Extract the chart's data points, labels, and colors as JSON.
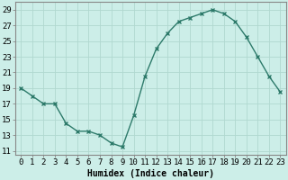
{
  "x_data": [
    0,
    1,
    2,
    3,
    4,
    5,
    6,
    7,
    8,
    9,
    10,
    11,
    12,
    13,
    14,
    15,
    16,
    17,
    18,
    19,
    20,
    21,
    22,
    23
  ],
  "y_data": [
    19,
    18,
    17,
    17,
    14.5,
    13.5,
    13.5,
    13,
    12,
    11.5,
    15.5,
    20.5,
    24,
    26,
    27.5,
    28,
    28.5,
    29,
    28.5,
    27.5,
    25.5,
    23,
    20.5,
    18.5
  ],
  "line_color": "#2d7a6a",
  "marker": "x",
  "background_color": "#cceee8",
  "grid_color": "#b0d8d0",
  "xlabel": "Humidex (Indice chaleur)",
  "xlim": [
    -0.5,
    23.5
  ],
  "ylim": [
    10.5,
    30
  ],
  "yticks": [
    11,
    13,
    15,
    17,
    19,
    21,
    23,
    25,
    27,
    29
  ],
  "xticks": [
    0,
    1,
    2,
    3,
    4,
    5,
    6,
    7,
    8,
    9,
    10,
    11,
    12,
    13,
    14,
    15,
    16,
    17,
    18,
    19,
    20,
    21,
    22,
    23
  ],
  "xlabel_fontsize": 7,
  "tick_fontsize": 6.5,
  "linewidth": 1.0,
  "markersize": 3.5,
  "markeredgewidth": 1.0
}
